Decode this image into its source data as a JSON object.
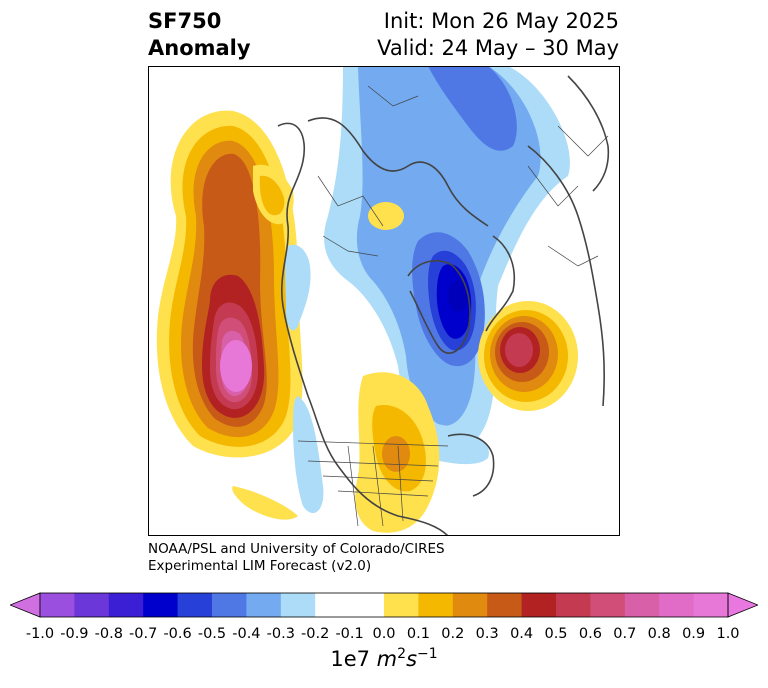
{
  "title": {
    "line1": "SF750",
    "line2": "Anomaly",
    "init": "Init: Mon 26 May 2025",
    "valid": "Valid: 24 May – 30 May"
  },
  "credit": {
    "line1": "NOAA/PSL and University of Colorado/CIRES",
    "line2": "Experimental LIM Forecast (v2.0)"
  },
  "colorbar": {
    "ticks": [
      "-1.0",
      "-0.9",
      "-0.8",
      "-0.7",
      "-0.6",
      "-0.5",
      "-0.4",
      "-0.3",
      "-0.2",
      "-0.1",
      "0.0",
      "0.1",
      "0.2",
      "0.3",
      "0.4",
      "0.5",
      "0.6",
      "0.7",
      "0.8",
      "0.9",
      "1.0"
    ],
    "colors": [
      "#9b4fdf",
      "#6c37d9",
      "#3b1fd4",
      "#0000cc",
      "#2640d8",
      "#4f78e4",
      "#73aaf0",
      "#acdcf8",
      "#ffffff",
      "#ffffff",
      "#ffe04d",
      "#f5b800",
      "#e08a10",
      "#c85a18",
      "#b22222",
      "#c43a50",
      "#d04e78",
      "#d860a8",
      "#e06cc8",
      "#e878d8"
    ],
    "extend_low": "#d070e0",
    "extend_high": "#e878e0",
    "units_prefix": "1e7 ",
    "units_base": "m",
    "units_exp1": "2",
    "units_mid": "s",
    "units_exp2": "−1"
  }
}
